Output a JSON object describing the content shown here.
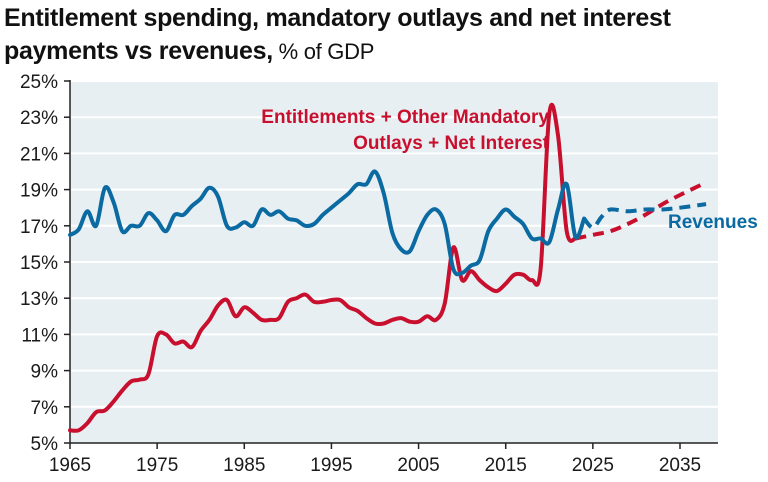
{
  "header": {
    "title_bold": "Entitlement spending, mandatory outlays and net interest payments vs revenues,",
    "title_unit": " % of GDP"
  },
  "chart_data": {
    "type": "line",
    "title": "Entitlement spending, mandatory outlays and net interest payments vs revenues, % of GDP",
    "xlabel": "",
    "ylabel": "% of GDP",
    "xlim": [
      1965,
      2038
    ],
    "ylim": [
      5,
      25
    ],
    "grid": true,
    "x_ticks": [
      1965,
      1975,
      1985,
      1995,
      2005,
      2015,
      2025,
      2035
    ],
    "x_tick_labels": [
      "1965",
      "1975",
      "1985",
      "1995",
      "2005",
      "2015",
      "2025",
      "2035"
    ],
    "y_ticks": [
      5,
      7,
      9,
      11,
      13,
      15,
      17,
      19,
      21,
      23,
      25
    ],
    "y_tick_labels": [
      "5%",
      "7%",
      "9%",
      "11%",
      "13%",
      "15%",
      "17%",
      "19%",
      "21%",
      "23%",
      "25%"
    ],
    "colors": {
      "spending": "#c8102e",
      "revenues": "#0a6aa1",
      "plot_bg": "#e8eff3",
      "grid": "#ffffff"
    },
    "annotations": [
      {
        "text_lines": [
          "Entitlements + Other Mandatory",
          "Outlays + Net Interest"
        ],
        "series": "spending"
      },
      {
        "text_lines": [
          "Revenues"
        ],
        "series": "revenues"
      }
    ],
    "series": [
      {
        "name": "Entitlements + Other Mandatory Outlays + Net Interest",
        "style": "solid",
        "x": [
          1965,
          1966,
          1967,
          1968,
          1969,
          1970,
          1971,
          1972,
          1973,
          1974,
          1975,
          1976,
          1977,
          1978,
          1979,
          1980,
          1981,
          1982,
          1983,
          1984,
          1985,
          1986,
          1987,
          1988,
          1989,
          1990,
          1991,
          1992,
          1993,
          1994,
          1995,
          1996,
          1997,
          1998,
          1999,
          2000,
          2001,
          2002,
          2003,
          2004,
          2005,
          2006,
          2007,
          2008,
          2009,
          2010,
          2011,
          2012,
          2013,
          2014,
          2015,
          2016,
          2017,
          2018,
          2019,
          2020,
          2021,
          2022,
          2023
        ],
        "values": [
          5.7,
          5.7,
          6.1,
          6.7,
          6.8,
          7.3,
          7.9,
          8.4,
          8.5,
          8.8,
          10.9,
          11.0,
          10.5,
          10.6,
          10.3,
          11.2,
          11.8,
          12.6,
          12.9,
          12.0,
          12.5,
          12.2,
          11.8,
          11.8,
          11.9,
          12.8,
          13.0,
          13.2,
          12.8,
          12.8,
          12.9,
          12.9,
          12.5,
          12.3,
          11.9,
          11.6,
          11.6,
          11.8,
          11.9,
          11.7,
          11.7,
          12.0,
          11.8,
          12.7,
          15.8,
          14.0,
          14.5,
          14.0,
          13.6,
          13.4,
          13.8,
          14.3,
          14.3,
          14.0,
          14.6,
          23.2,
          22.0,
          16.7,
          16.3
        ],
        "projection_x": [
          2023,
          2025,
          2027,
          2029,
          2031,
          2033,
          2035,
          2038
        ],
        "projection_values": [
          16.3,
          16.5,
          16.7,
          17.1,
          17.6,
          18.2,
          18.7,
          19.4
        ]
      },
      {
        "name": "Revenues",
        "style": "solid",
        "x": [
          1965,
          1966,
          1967,
          1968,
          1969,
          1970,
          1971,
          1972,
          1973,
          1974,
          1975,
          1976,
          1977,
          1978,
          1979,
          1980,
          1981,
          1982,
          1983,
          1984,
          1985,
          1986,
          1987,
          1988,
          1989,
          1990,
          1991,
          1992,
          1993,
          1994,
          1995,
          1996,
          1997,
          1998,
          1999,
          2000,
          2001,
          2002,
          2003,
          2004,
          2005,
          2006,
          2007,
          2008,
          2009,
          2010,
          2011,
          2012,
          2013,
          2014,
          2015,
          2016,
          2017,
          2018,
          2019,
          2020,
          2021,
          2022,
          2023,
          2024
        ],
        "values": [
          16.5,
          16.8,
          17.8,
          17.0,
          19.1,
          18.3,
          16.7,
          17.0,
          17.0,
          17.7,
          17.3,
          16.7,
          17.6,
          17.6,
          18.1,
          18.5,
          19.1,
          18.6,
          17.0,
          16.9,
          17.2,
          17.0,
          17.9,
          17.6,
          17.8,
          17.4,
          17.3,
          17.0,
          17.1,
          17.6,
          18.0,
          18.4,
          18.8,
          19.3,
          19.3,
          20.0,
          18.8,
          16.6,
          15.7,
          15.6,
          16.7,
          17.6,
          17.9,
          17.1,
          14.6,
          14.4,
          14.8,
          15.1,
          16.7,
          17.4,
          17.9,
          17.5,
          17.1,
          16.3,
          16.3,
          16.1,
          17.9,
          19.3,
          16.4,
          17.4
        ],
        "projection_x": [
          2024,
          2025,
          2026,
          2027,
          2029,
          2031,
          2033,
          2035,
          2038
        ],
        "projection_values": [
          17.4,
          16.9,
          17.5,
          17.9,
          17.8,
          17.9,
          17.9,
          18.0,
          18.2
        ]
      }
    ]
  }
}
